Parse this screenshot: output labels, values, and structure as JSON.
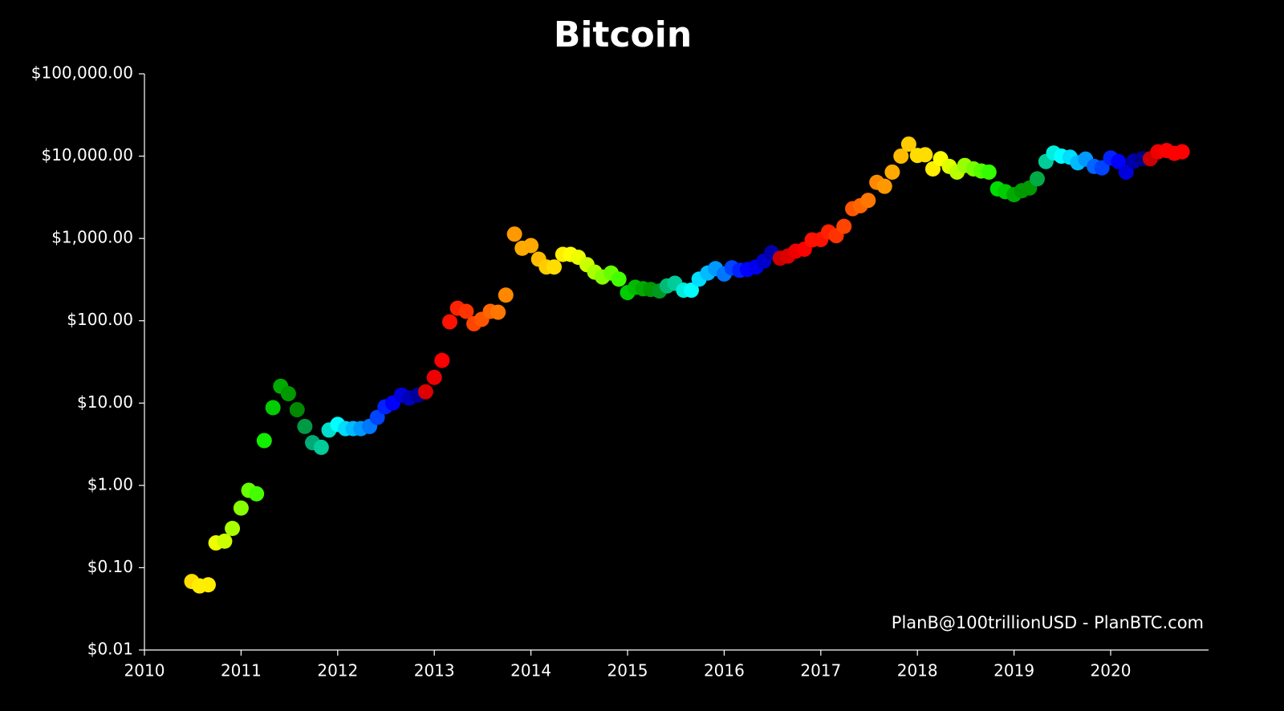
{
  "chart_data": {
    "type": "scatter",
    "title": "Bitcoin",
    "annotation": "PlanB@100trillionUSD - PlanBTC.com",
    "log_y": true,
    "xlim": [
      2010,
      2021
    ],
    "xticks": [
      2010,
      2011,
      2012,
      2013,
      2014,
      2015,
      2016,
      2017,
      2018,
      2019,
      2020
    ],
    "ylim": [
      0.01,
      100000
    ],
    "yticks": [
      {
        "value": 0.01,
        "label": "$0.01"
      },
      {
        "value": 0.1,
        "label": "$0.10"
      },
      {
        "value": 1,
        "label": "$1.00"
      },
      {
        "value": 10,
        "label": "$10.00"
      },
      {
        "value": 100,
        "label": "$100.00"
      },
      {
        "value": 1000,
        "label": "$1,000.00"
      },
      {
        "value": 10000,
        "label": "$10,000.00"
      },
      {
        "value": 100000,
        "label": "$100,000.00"
      }
    ],
    "x": [
      2010.49,
      2010.57,
      2010.66,
      2010.74,
      2010.83,
      2010.91,
      2011.0,
      2011.08,
      2011.16,
      2011.24,
      2011.33,
      2011.41,
      2011.49,
      2011.58,
      2011.66,
      2011.74,
      2011.83,
      2011.91,
      2012.0,
      2012.08,
      2012.16,
      2012.24,
      2012.33,
      2012.41,
      2012.49,
      2012.57,
      2012.66,
      2012.74,
      2012.83,
      2012.91,
      2013.0,
      2013.08,
      2013.16,
      2013.24,
      2013.33,
      2013.41,
      2013.49,
      2013.58,
      2013.66,
      2013.74,
      2013.83,
      2013.91,
      2014.0,
      2014.08,
      2014.16,
      2014.24,
      2014.33,
      2014.41,
      2014.49,
      2014.58,
      2014.66,
      2014.74,
      2014.83,
      2014.91,
      2015.0,
      2015.08,
      2015.16,
      2015.24,
      2015.33,
      2015.41,
      2015.49,
      2015.58,
      2015.66,
      2015.74,
      2015.83,
      2015.91,
      2016.0,
      2016.08,
      2016.16,
      2016.24,
      2016.33,
      2016.41,
      2016.49,
      2016.58,
      2016.66,
      2016.74,
      2016.83,
      2016.91,
      2017.0,
      2017.08,
      2017.16,
      2017.24,
      2017.33,
      2017.41,
      2017.49,
      2017.58,
      2017.66,
      2017.74,
      2017.83,
      2017.91,
      2018.0,
      2018.08,
      2018.16,
      2018.24,
      2018.33,
      2018.41,
      2018.49,
      2018.58,
      2018.66,
      2018.74,
      2018.83,
      2018.91,
      2019.0,
      2019.08,
      2019.16,
      2019.24,
      2019.33,
      2019.41,
      2019.49,
      2019.58,
      2019.66,
      2019.74,
      2019.83,
      2019.91,
      2020.0,
      2020.08,
      2020.16,
      2020.24,
      2020.33,
      2020.41,
      2020.49,
      2020.58,
      2020.66,
      2020.74
    ],
    "values": [
      0.068,
      0.06,
      0.062,
      0.2,
      0.21,
      0.3,
      0.53,
      0.87,
      0.79,
      3.5,
      8.8,
      16,
      13,
      8.3,
      5.2,
      3.3,
      2.9,
      4.7,
      5.5,
      4.9,
      4.9,
      4.9,
      5.2,
      6.7,
      9.0,
      10,
      12.5,
      11.5,
      12.5,
      13.7,
      20.5,
      33,
      97,
      142,
      130,
      92,
      104,
      130,
      127,
      205,
      1130,
      760,
      820,
      560,
      450,
      450,
      640,
      640,
      590,
      480,
      390,
      340,
      380,
      320,
      220,
      255,
      245,
      240,
      230,
      265,
      285,
      235,
      235,
      320,
      380,
      430,
      370,
      440,
      410,
      420,
      450,
      530,
      670,
      575,
      610,
      700,
      740,
      960,
      970,
      1200,
      1080,
      1400,
      2300,
      2500,
      2900,
      4800,
      4300,
      6400,
      10000,
      14000,
      10200,
      10400,
      7000,
      9300,
      7500,
      6400,
      7700,
      7000,
      6600,
      6400,
      4000,
      3700,
      3400,
      3800,
      4100,
      5300,
      8600,
      10900,
      10000,
      9700,
      8300,
      9200,
      7500,
      7200,
      9500,
      8600,
      6400,
      8700,
      9300,
      9300,
      11300,
      11700,
      10800,
      11300
    ],
    "colors": [
      "#ffdd00",
      "#ffee00",
      "#ffee00",
      "#eeff00",
      "#ccff00",
      "#aaff00",
      "#88ff00",
      "#66ff00",
      "#44ff00",
      "#11ee00",
      "#00cc00",
      "#00aa00",
      "#009900",
      "#008800",
      "#009944",
      "#00aa77",
      "#00cc99",
      "#00ddcc",
      "#00ffff",
      "#00ddff",
      "#00bbff",
      "#0099ff",
      "#0077ff",
      "#0044ff",
      "#0022ff",
      "#0000ff",
      "#0000dd",
      "#0000bb",
      "#000099",
      "#dd0000",
      "#ee0000",
      "#ff0000",
      "#ff1100",
      "#ff2200",
      "#ff3300",
      "#ff4400",
      "#ff5500",
      "#ff6600",
      "#ff7700",
      "#ff8800",
      "#ff9900",
      "#ffaa00",
      "#ffaa00",
      "#ffbb00",
      "#ffcc00",
      "#ffdd00",
      "#ffee00",
      "#ffff00",
      "#eeff00",
      "#ccff00",
      "#aaff00",
      "#88ff00",
      "#66ff00",
      "#44ff00",
      "#00cc00",
      "#00bb00",
      "#00aa00",
      "#009900",
      "#009922",
      "#00bb77",
      "#00cc99",
      "#00eedd",
      "#00ffff",
      "#00ddff",
      "#00bbff",
      "#0099ff",
      "#0077ff",
      "#0044ff",
      "#0022ff",
      "#0000ff",
      "#0000ee",
      "#0000cc",
      "#0000aa",
      "#cc0000",
      "#dd0000",
      "#ee0000",
      "#ff0000",
      "#ff1100",
      "#ff1100",
      "#ff2200",
      "#ff3300",
      "#ff4400",
      "#ff5500",
      "#ff6600",
      "#ff7700",
      "#ff8800",
      "#ff9900",
      "#ffaa00",
      "#ffbb00",
      "#ffcc00",
      "#ffdd00",
      "#ffdd00",
      "#ffee00",
      "#ffff00",
      "#ddff00",
      "#bbff00",
      "#99ff00",
      "#77ff00",
      "#55ff00",
      "#33ff00",
      "#00dd00",
      "#00cc00",
      "#00aa00",
      "#009900",
      "#009900",
      "#00aa44",
      "#00cc99",
      "#00eedd",
      "#00ffff",
      "#00ddff",
      "#00bbff",
      "#0099ff",
      "#0066ff",
      "#0044ff",
      "#0022ff",
      "#0000ff",
      "#0000dd",
      "#0000aa",
      "#000088",
      "#cc0000",
      "#ee0000",
      "#ff0000",
      "#ff0000",
      "#ff0000"
    ]
  }
}
